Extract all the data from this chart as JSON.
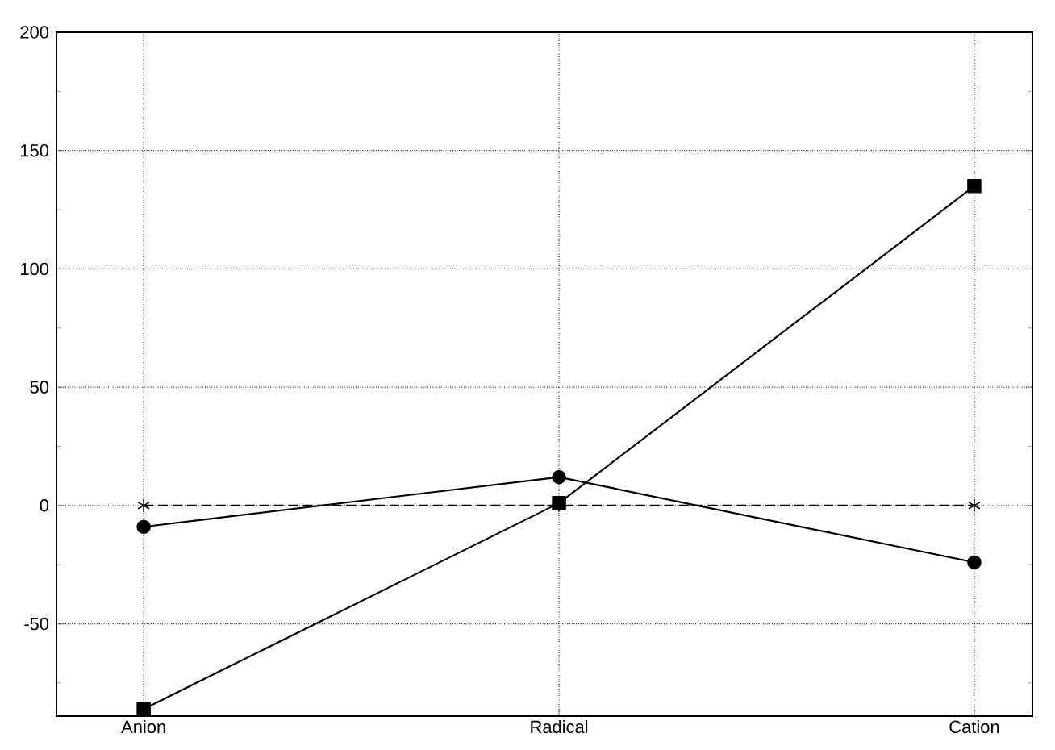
{
  "chart_data": {
    "type": "line",
    "categories": [
      "Anion",
      "Radical",
      "Cation"
    ],
    "series": [
      {
        "color": "#000000",
        "marker": "square",
        "line_style": "solid",
        "values": [
          -86,
          1,
          135
        ]
      },
      {
        "color": "#000000",
        "marker": "circle",
        "line_style": "solid",
        "values": [
          -9,
          12,
          -24
        ]
      },
      {
        "color": "#000000",
        "marker": "cross",
        "line_style": "dashed",
        "values": [
          0,
          0,
          0
        ]
      }
    ],
    "ylim": [
      -89,
      200
    ],
    "yticks": [
      {
        "value": -75,
        "label": null
      },
      -50,
      {
        "value": -25,
        "label": null
      },
      0,
      {
        "value": 25,
        "label": null
      },
      50,
      {
        "value": 75,
        "label": null
      },
      100,
      {
        "value": 125,
        "label": null
      },
      150,
      {
        "value": 175,
        "label": null
      },
      200
    ],
    "grid": true
  }
}
